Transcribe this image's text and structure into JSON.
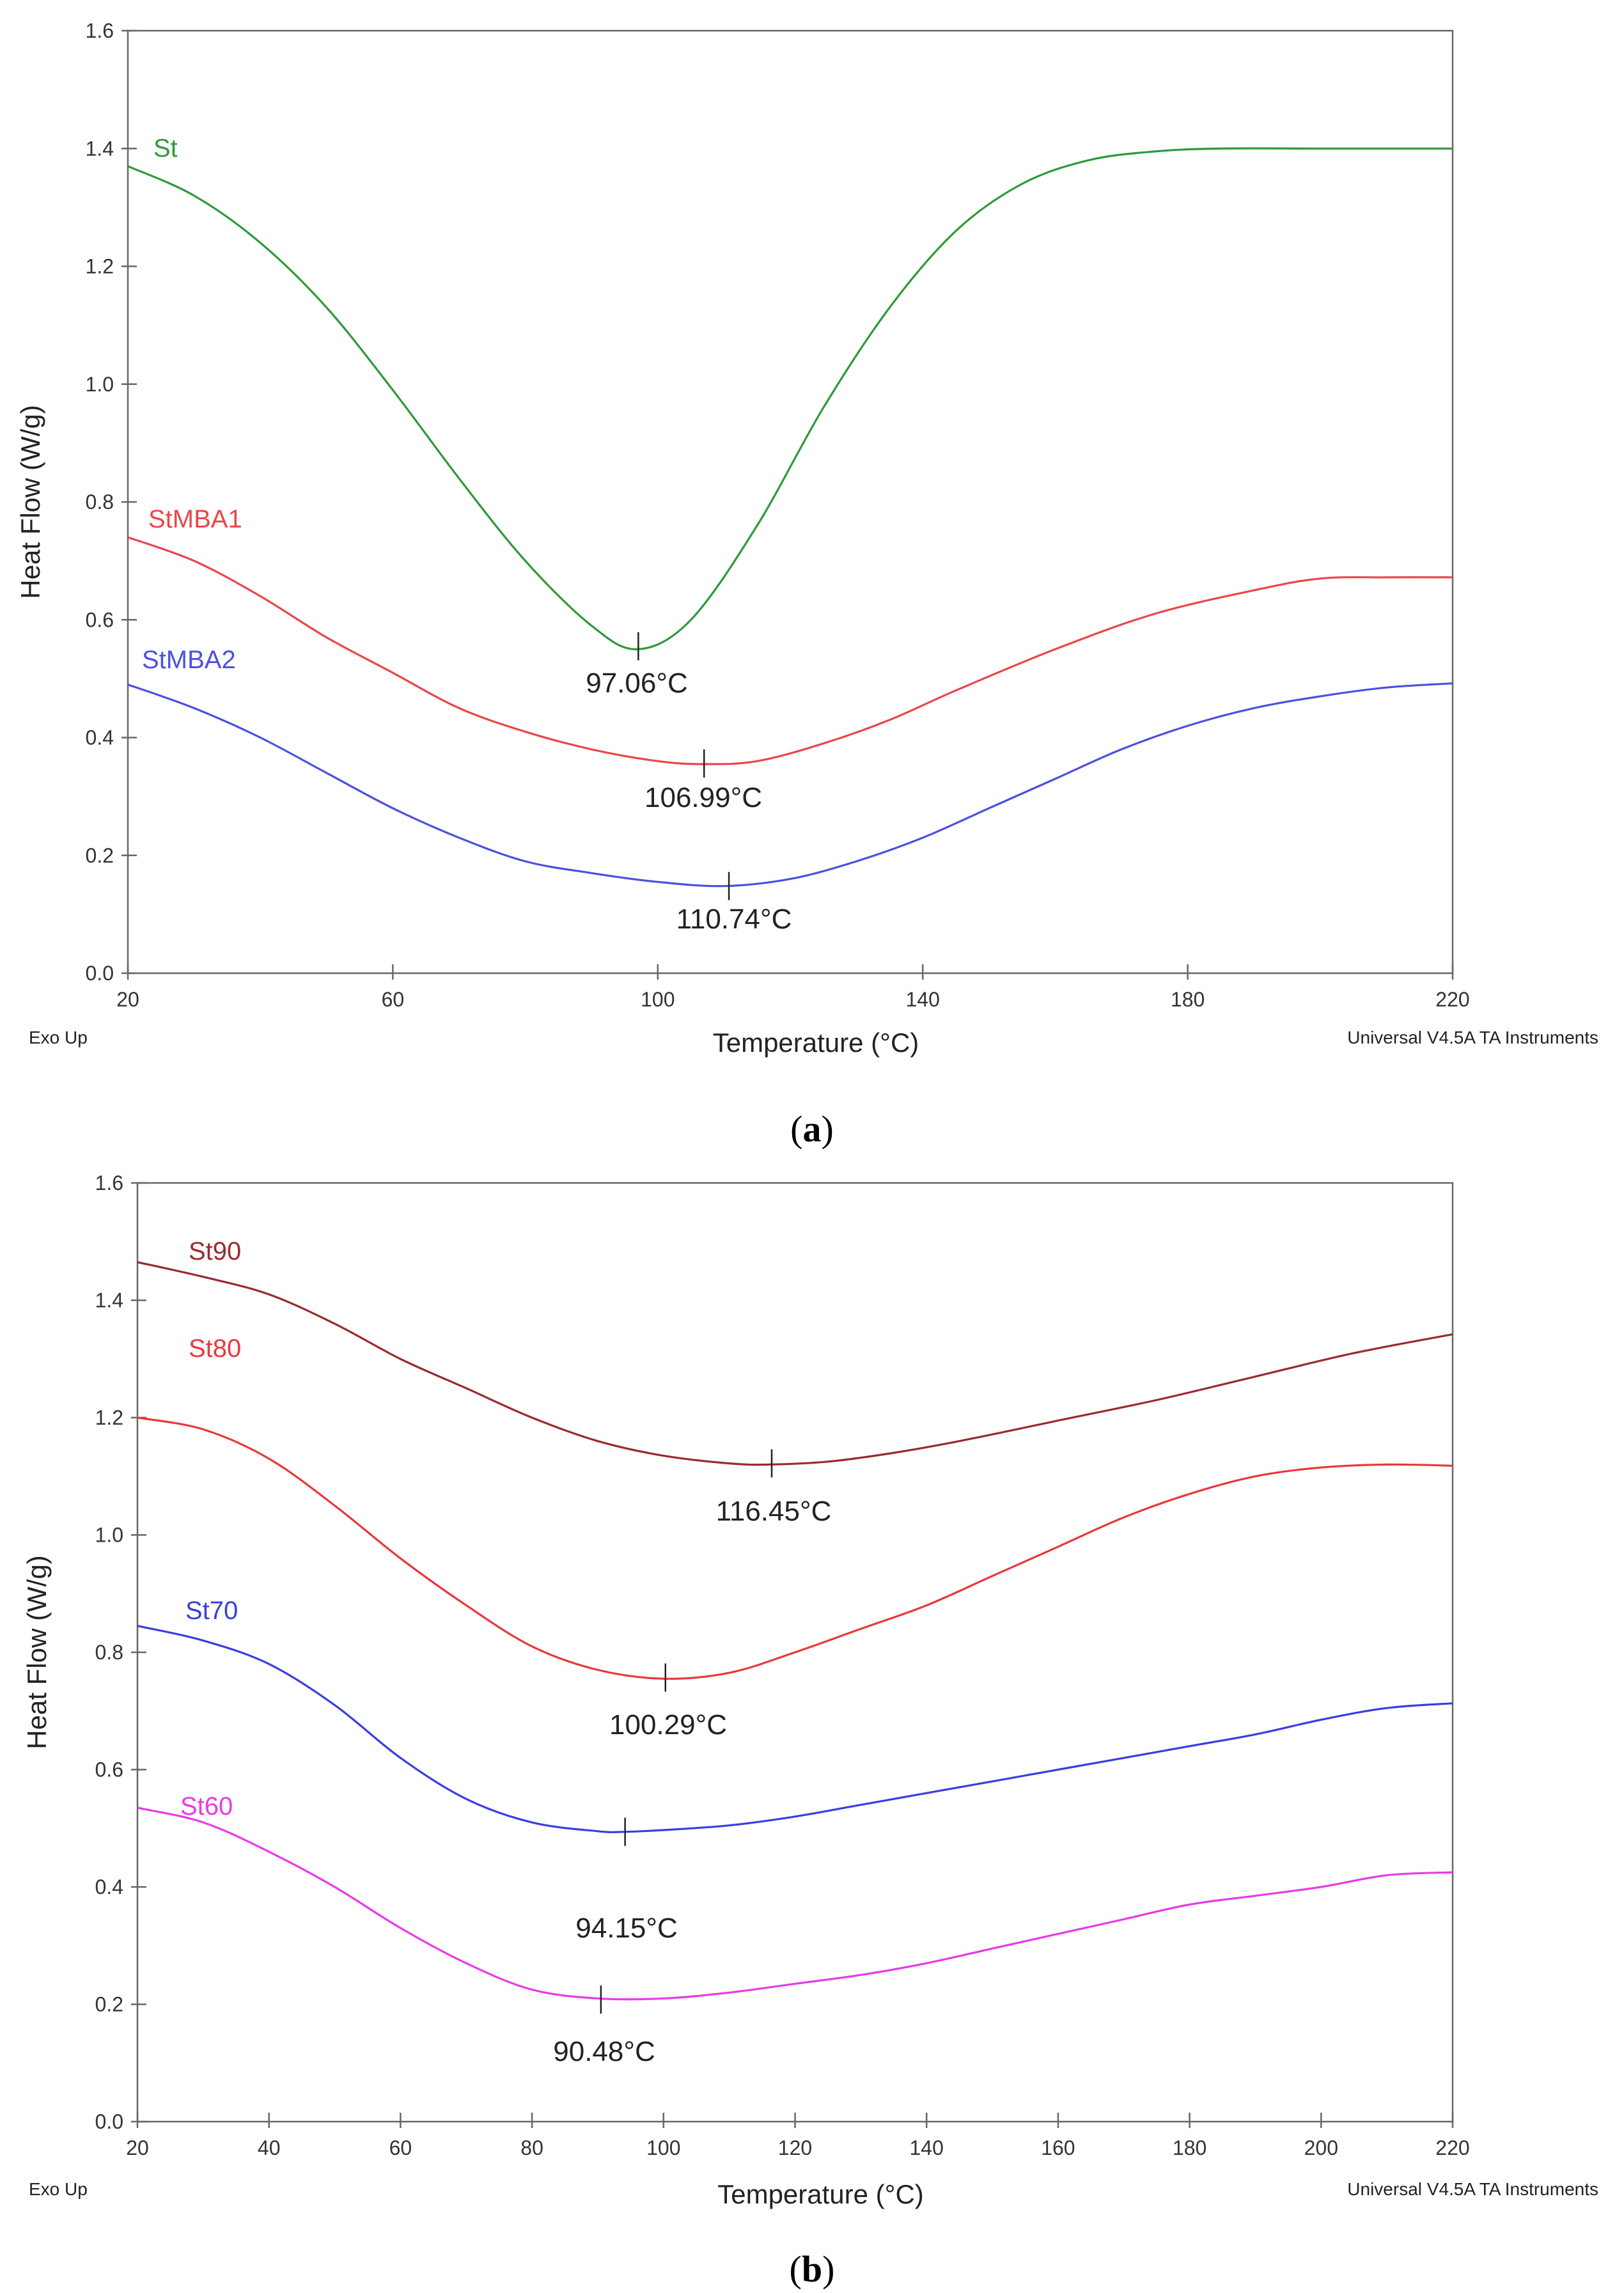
{
  "chart_data": [
    {
      "type": "line",
      "panel": "a",
      "caption": "a",
      "xlabel": "Temperature (°C)",
      "ylabel": "Heat Flow (W/g)",
      "footer_left": "Exo Up",
      "footer_right": "Universal V4.5A TA Instruments",
      "xlim": [
        20,
        220
      ],
      "ylim": [
        0.0,
        1.6
      ],
      "xticks": [
        "20",
        "60",
        "100",
        "140",
        "180",
        "220"
      ],
      "xtick_values": [
        20,
        60,
        100,
        140,
        180,
        220
      ],
      "yticks": [
        "0.0",
        "0.2",
        "0.4",
        "0.6",
        "0.8",
        "1.0",
        "1.2",
        "1.4",
        "1.6"
      ],
      "ytick_values": [
        0.0,
        0.2,
        0.4,
        0.6,
        0.8,
        1.0,
        1.2,
        1.4,
        1.6
      ],
      "series": [
        {
          "name": "St",
          "color": "#2e9a3a",
          "x": [
            20,
            30,
            40,
            50,
            60,
            70,
            80,
            90,
            97,
            105,
            115,
            125,
            135,
            145,
            155,
            165,
            175,
            185,
            200,
            220
          ],
          "y": [
            1.37,
            1.32,
            1.24,
            1.13,
            0.99,
            0.84,
            0.7,
            0.59,
            0.55,
            0.6,
            0.76,
            0.96,
            1.13,
            1.26,
            1.34,
            1.38,
            1.395,
            1.4,
            1.4,
            1.4
          ],
          "peak_x": 97.06,
          "peak_y": 0.555,
          "peak_label": "97.06°C"
        },
        {
          "name": "StMBA1",
          "color": "#e8474b",
          "x": [
            20,
            30,
            40,
            50,
            60,
            70,
            80,
            90,
            100,
            107,
            115,
            125,
            135,
            145,
            160,
            175,
            190,
            200,
            210,
            220
          ],
          "y": [
            0.74,
            0.7,
            0.64,
            0.57,
            0.51,
            0.45,
            0.41,
            0.38,
            0.36,
            0.355,
            0.36,
            0.39,
            0.43,
            0.48,
            0.55,
            0.61,
            0.65,
            0.67,
            0.672,
            0.672
          ],
          "peak_x": 106.99,
          "peak_y": 0.356,
          "peak_label": "106.99°C"
        },
        {
          "name": "StMBA2",
          "color": "#4b50e0",
          "x": [
            20,
            30,
            40,
            50,
            60,
            70,
            80,
            90,
            100,
            110,
            120,
            130,
            140,
            150,
            160,
            170,
            180,
            190,
            200,
            210,
            220
          ],
          "y": [
            0.49,
            0.45,
            0.4,
            0.34,
            0.28,
            0.23,
            0.19,
            0.17,
            0.155,
            0.148,
            0.16,
            0.19,
            0.23,
            0.28,
            0.33,
            0.38,
            0.42,
            0.45,
            0.47,
            0.485,
            0.492
          ],
          "peak_x": 110.74,
          "peak_y": 0.148,
          "peak_label": "110.74°C"
        }
      ]
    },
    {
      "type": "line",
      "panel": "b",
      "caption": "b",
      "xlabel": "Temperature (°C)",
      "ylabel": "Heat Flow (W/g)",
      "footer_left": "Exo Up",
      "footer_right": "Universal V4.5A TA Instruments",
      "xlim": [
        20,
        220
      ],
      "ylim": [
        0.0,
        1.6
      ],
      "xticks": [
        "20",
        "40",
        "60",
        "80",
        "100",
        "120",
        "140",
        "160",
        "180",
        "200",
        "220"
      ],
      "xtick_values": [
        20,
        40,
        60,
        80,
        100,
        120,
        140,
        160,
        180,
        200,
        220
      ],
      "yticks": [
        "0.0",
        "0.2",
        "0.4",
        "0.6",
        "0.8",
        "1.0",
        "1.2",
        "1.4",
        "1.6"
      ],
      "ytick_values": [
        0.0,
        0.2,
        0.4,
        0.6,
        0.8,
        1.0,
        1.2,
        1.4,
        1.6
      ],
      "series": [
        {
          "name": "St90",
          "color": "#9a2a2e",
          "x": [
            20,
            30,
            40,
            50,
            60,
            70,
            80,
            90,
            100,
            110,
            116,
            125,
            135,
            145,
            160,
            175,
            190,
            205,
            220
          ],
          "y": [
            1.465,
            1.44,
            1.41,
            1.36,
            1.3,
            1.25,
            1.2,
            1.16,
            1.135,
            1.122,
            1.12,
            1.125,
            1.14,
            1.16,
            1.195,
            1.23,
            1.27,
            1.31,
            1.342
          ],
          "peak_x": 116.45,
          "peak_y": 1.122,
          "peak_label": "116.45°C"
        },
        {
          "name": "St80",
          "color": "#e8383c",
          "x": [
            20,
            30,
            40,
            50,
            60,
            70,
            80,
            90,
            100,
            110,
            120,
            130,
            140,
            150,
            160,
            170,
            180,
            190,
            200,
            210,
            220
          ],
          "y": [
            1.2,
            1.18,
            1.13,
            1.05,
            0.96,
            0.88,
            0.81,
            0.77,
            0.755,
            0.765,
            0.8,
            0.84,
            0.88,
            0.93,
            0.98,
            1.03,
            1.07,
            1.1,
            1.115,
            1.12,
            1.118
          ],
          "peak_x": 100.29,
          "peak_y": 0.757,
          "peak_label": "100.29°C"
        },
        {
          "name": "St70",
          "color": "#3a3ee0",
          "x": [
            20,
            30,
            40,
            50,
            60,
            70,
            80,
            90,
            94,
            100,
            110,
            120,
            130,
            140,
            150,
            160,
            170,
            180,
            190,
            200,
            210,
            220
          ],
          "y": [
            0.845,
            0.82,
            0.78,
            0.71,
            0.62,
            0.55,
            0.51,
            0.495,
            0.494,
            0.497,
            0.505,
            0.52,
            0.54,
            0.56,
            0.58,
            0.6,
            0.62,
            0.64,
            0.66,
            0.685,
            0.705,
            0.713
          ],
          "peak_x": 94.15,
          "peak_y": 0.494,
          "peak_label": "94.15°C"
        },
        {
          "name": "St60",
          "color": "#e83ae8",
          "x": [
            20,
            30,
            40,
            50,
            60,
            70,
            80,
            90,
            100,
            110,
            120,
            130,
            140,
            150,
            160,
            170,
            180,
            190,
            200,
            210,
            220
          ],
          "y": [
            0.535,
            0.51,
            0.46,
            0.4,
            0.33,
            0.27,
            0.225,
            0.21,
            0.21,
            0.22,
            0.235,
            0.25,
            0.27,
            0.295,
            0.32,
            0.345,
            0.37,
            0.385,
            0.4,
            0.42,
            0.425
          ],
          "peak_x": 90.48,
          "peak_y": 0.208,
          "peak_label": "90.48°C"
        }
      ]
    }
  ]
}
